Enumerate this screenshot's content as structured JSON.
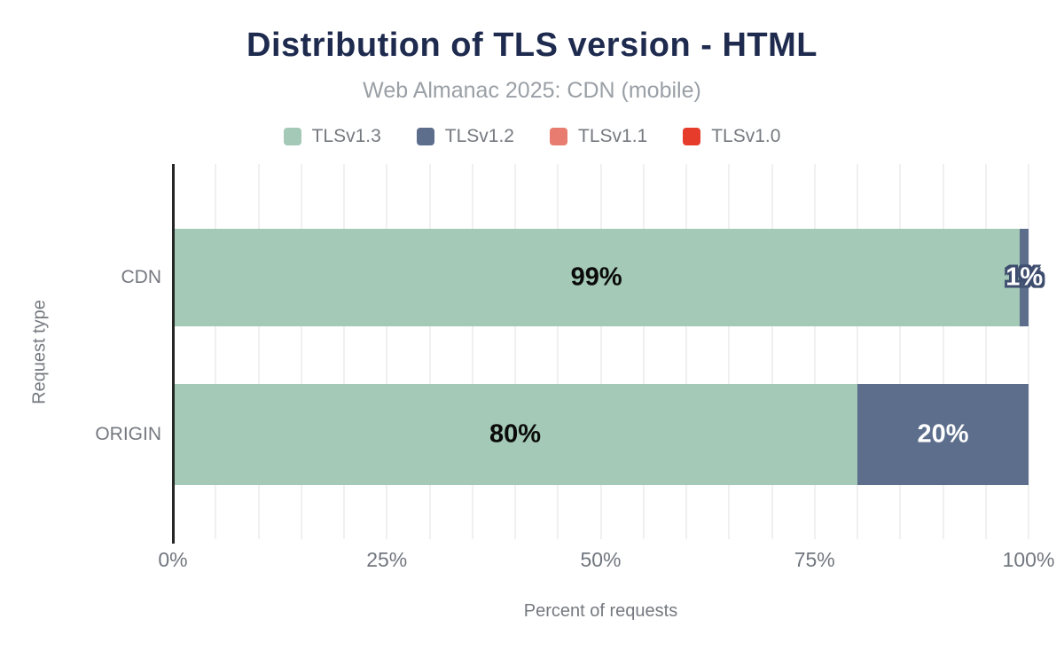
{
  "chart": {
    "title": "Distribution of TLS version - HTML",
    "subtitle": "Web Almanac 2025: CDN (mobile)",
    "xlabel": "Percent of requests",
    "ylabel": "Request type",
    "x_ticks": [
      "0%",
      "25%",
      "50%",
      "75%",
      "100%"
    ]
  },
  "chart_data": {
    "type": "bar",
    "orientation": "horizontal",
    "stacked": true,
    "title": "Distribution of TLS version - HTML",
    "subtitle": "Web Almanac 2025: CDN (mobile)",
    "xlabel": "Percent of requests",
    "ylabel": "Request type",
    "xlim": [
      0,
      100
    ],
    "grid_step": 5,
    "grid": true,
    "legend_position": "top",
    "categories": [
      "CDN",
      "ORIGIN"
    ],
    "series": [
      {
        "name": "TLSv1.3",
        "color": "#a4c9b6",
        "values": [
          99,
          80
        ]
      },
      {
        "name": "TLSv1.2",
        "color": "#5c6e8c",
        "values": [
          1,
          20
        ]
      },
      {
        "name": "TLSv1.1",
        "color": "#e87c70",
        "values": [
          0,
          0
        ]
      },
      {
        "name": "TLSv1.0",
        "color": "#e63c2b",
        "values": [
          0,
          0
        ]
      }
    ],
    "data_labels": {
      "CDN": [
        "99%",
        "1%"
      ],
      "ORIGIN": [
        "80%",
        "20%"
      ]
    },
    "colors": {
      "title": "#1e2b4f",
      "subtitle": "#9aa0a6",
      "axis_text": "#75797f",
      "tick_text": "#71767e",
      "gridline": "#f0f0f1",
      "axis_line": "#262626",
      "label_outline": "#3e4d6e"
    }
  }
}
